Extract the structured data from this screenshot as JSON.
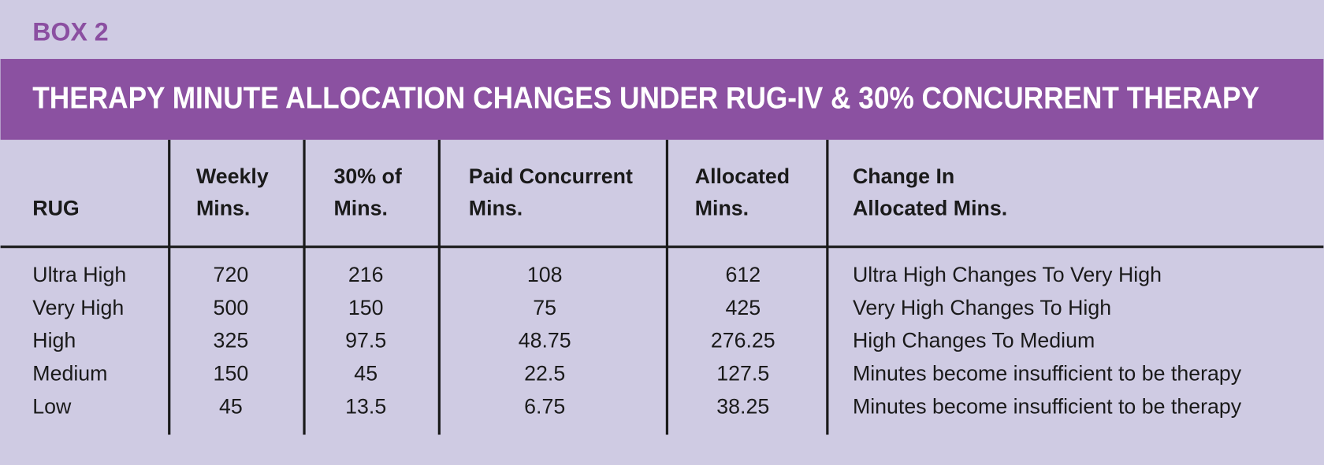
{
  "box_label": "BOX 2",
  "title": "THERAPY MINUTE ALLOCATION CHANGES UNDER RUG-IV & 30% CONCURRENT THERAPY",
  "table": {
    "headers": [
      [
        "RUG"
      ],
      [
        "Weekly",
        "Mins."
      ],
      [
        "30% of",
        "Mins."
      ],
      [
        "Paid Concurrent",
        "Mins."
      ],
      [
        "Allocated",
        "Mins."
      ],
      [
        "Change In",
        "Allocated Mins."
      ]
    ],
    "rows": [
      [
        "Ultra High",
        720,
        216,
        108,
        612,
        "Ultra High Changes To Very High"
      ],
      [
        "Very High",
        500,
        150,
        75,
        425,
        "Very High Changes To High"
      ],
      [
        "High",
        325,
        97.5,
        48.75,
        276.25,
        "High Changes To Medium"
      ],
      [
        "Medium",
        150,
        45,
        22.5,
        127.5,
        "Minutes become insufficient to be therapy"
      ],
      [
        "Low",
        45,
        13.5,
        6.75,
        38.25,
        "Minutes become insufficient to be therapy"
      ]
    ]
  }
}
